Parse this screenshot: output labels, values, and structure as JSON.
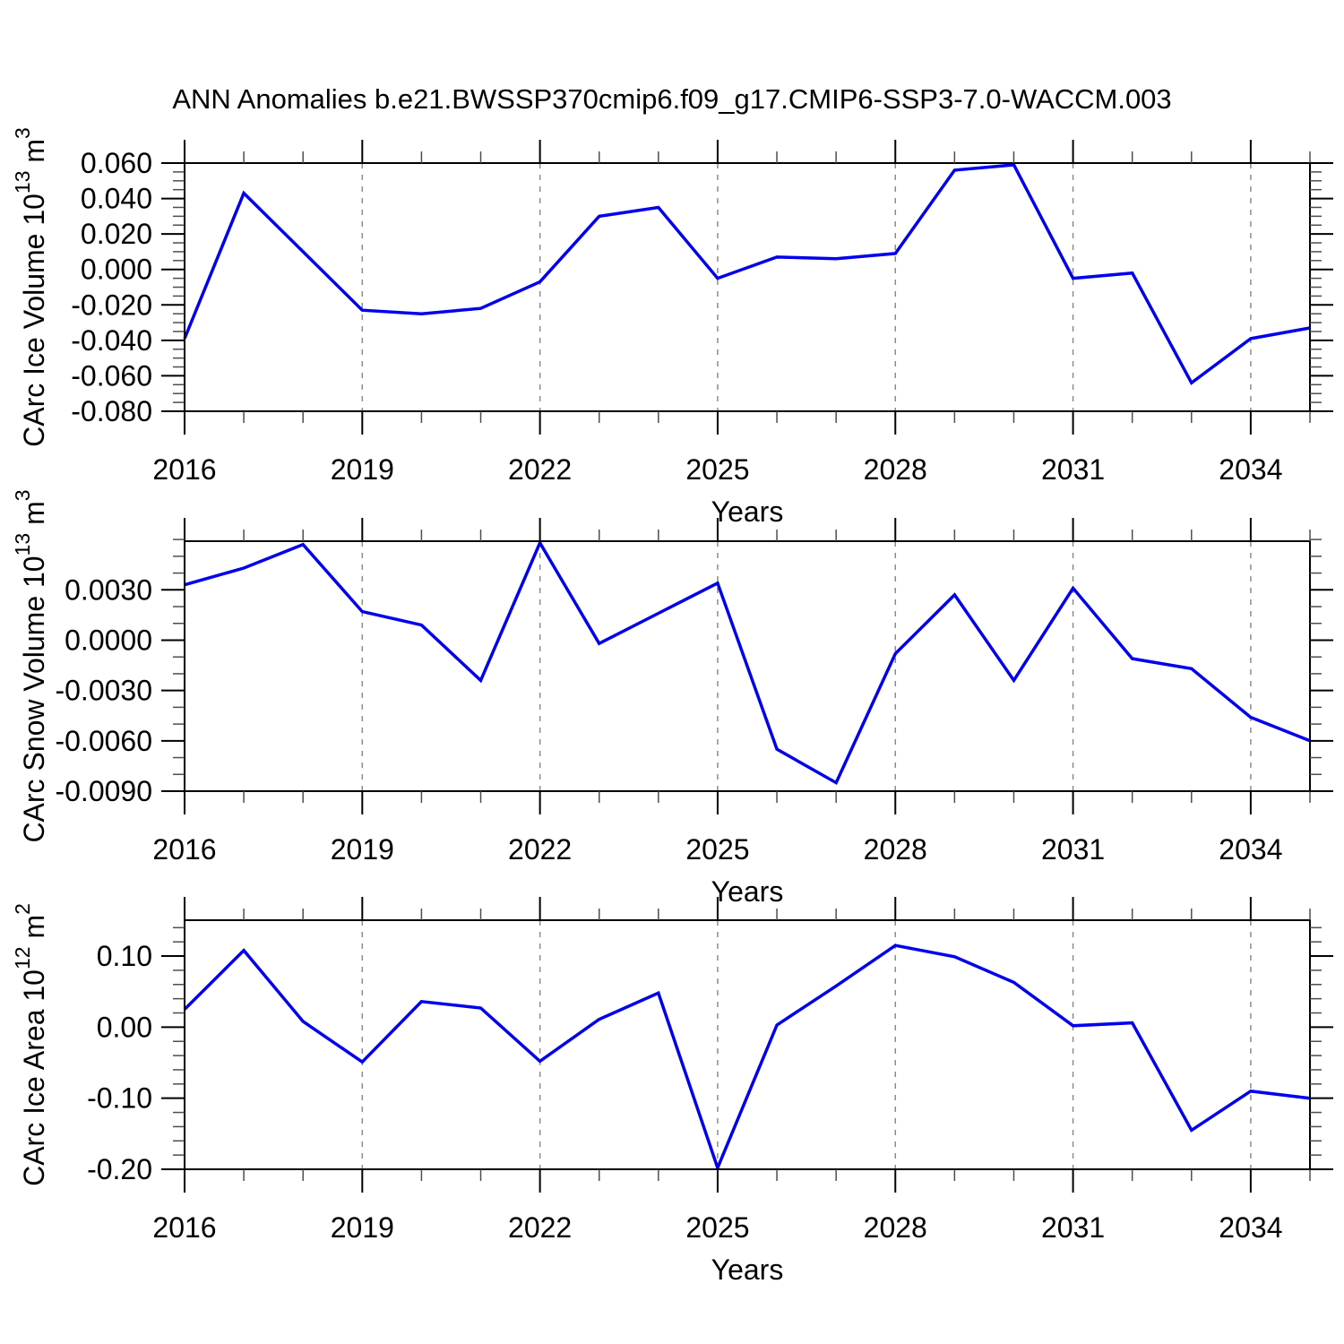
{
  "title": "ANN Anomalies b.e21.BWSSP370cmip6.f09_g17.CMIP6-SSP3-7.0-WACCM.003",
  "colors": {
    "line": "#0000EE",
    "grid": "#8C8C8C",
    "axis": "#000000",
    "minor_tick": "#4D4D4D",
    "background": "#FFFFFF"
  },
  "x_axis": {
    "label": "Years",
    "years": [
      2016,
      2017,
      2018,
      2019,
      2020,
      2021,
      2022,
      2023,
      2024,
      2025,
      2026,
      2027,
      2028,
      2029,
      2030,
      2031,
      2032,
      2033,
      2034,
      2035
    ],
    "tick_label_years": [
      "2016",
      "2019",
      "2022",
      "2025",
      "2028",
      "2031",
      "2034"
    ],
    "grid_years": [
      2019,
      2022,
      2025,
      2028,
      2031,
      2034
    ]
  },
  "chart_data": [
    {
      "id": "ice-volume",
      "type": "line",
      "series_name": "CArc Ice Volume",
      "ylabel_text": "CArc Ice Volume 10^13 m^3",
      "ylabel_parts": [
        {
          "text": "CArc Ice Volume 10",
          "sup": false
        },
        {
          "text": "13",
          "sup": true
        },
        {
          "text": " m",
          "sup": false
        },
        {
          "text": "3",
          "sup": true
        }
      ],
      "xlabel": "Years",
      "ylim": [
        -0.08,
        0.06
      ],
      "ytick_labels": [
        "0.060",
        "0.040",
        "0.020",
        "0.000",
        "-0.020",
        "-0.040",
        "-0.060",
        "-0.080"
      ],
      "ytick_values": [
        0.06,
        0.04,
        0.02,
        0.0,
        -0.02,
        -0.04,
        -0.06,
        -0.08
      ],
      "yminor_step": 0.005,
      "x": [
        2016,
        2017,
        2018,
        2019,
        2020,
        2021,
        2022,
        2023,
        2024,
        2025,
        2026,
        2027,
        2028,
        2029,
        2030,
        2031,
        2032,
        2033,
        2034,
        2035
      ],
      "values": [
        -0.039,
        0.043,
        0.01,
        -0.023,
        -0.025,
        -0.022,
        -0.007,
        0.03,
        0.035,
        -0.005,
        0.007,
        0.006,
        0.009,
        0.056,
        0.059,
        -0.005,
        -0.002,
        -0.064,
        -0.039,
        -0.033
      ]
    },
    {
      "id": "snow-volume",
      "type": "line",
      "series_name": "CArc Snow Volume",
      "ylabel_text": "CArc Snow Volume 10^13 m^3",
      "ylabel_parts": [
        {
          "text": "CArc Snow Volume 10",
          "sup": false
        },
        {
          "text": "13",
          "sup": true
        },
        {
          "text": " m",
          "sup": false
        },
        {
          "text": "3",
          "sup": true
        }
      ],
      "xlabel": "Years",
      "ylim": [
        -0.009,
        0.0059
      ],
      "ytick_labels": [
        "0.0030",
        "0.0000",
        "-0.0030",
        "-0.0060",
        "-0.0090"
      ],
      "ytick_values": [
        0.003,
        0.0,
        -0.003,
        -0.006,
        -0.009
      ],
      "yminor_step": 0.001,
      "x": [
        2016,
        2017,
        2018,
        2019,
        2020,
        2021,
        2022,
        2023,
        2024,
        2025,
        2026,
        2027,
        2028,
        2029,
        2030,
        2031,
        2032,
        2033,
        2034,
        2035
      ],
      "values": [
        0.0033,
        0.0043,
        0.0057,
        0.0017,
        0.0009,
        -0.0024,
        0.0058,
        -0.0002,
        0.0016,
        0.0034,
        -0.0065,
        -0.0085,
        -0.0008,
        0.0027,
        -0.0024,
        0.0031,
        -0.0011,
        -0.0017,
        -0.0046,
        -0.006
      ]
    },
    {
      "id": "ice-area",
      "type": "line",
      "series_name": "CArc Ice Area",
      "ylabel_text": "CArc Ice Area 10^12 m^2",
      "ylabel_parts": [
        {
          "text": "CArc Ice Area 10",
          "sup": false
        },
        {
          "text": "12",
          "sup": true
        },
        {
          "text": " m",
          "sup": false
        },
        {
          "text": "2",
          "sup": true
        }
      ],
      "xlabel": "Years",
      "ylim": [
        -0.2,
        0.1505
      ],
      "ytick_labels": [
        "0.10",
        "0.00",
        "-0.10",
        "-0.20"
      ],
      "ytick_values": [
        0.1,
        0.0,
        -0.1,
        -0.2
      ],
      "yminor_step": 0.02,
      "x": [
        2016,
        2017,
        2018,
        2019,
        2020,
        2021,
        2022,
        2023,
        2024,
        2025,
        2026,
        2027,
        2028,
        2029,
        2030,
        2031,
        2032,
        2033,
        2034,
        2035
      ],
      "values": [
        0.025,
        0.108,
        0.008,
        -0.049,
        0.036,
        0.027,
        -0.048,
        0.011,
        0.048,
        -0.198,
        0.003,
        0.058,
        0.115,
        0.099,
        0.063,
        0.002,
        0.006,
        -0.145,
        -0.09,
        -0.1
      ]
    }
  ]
}
